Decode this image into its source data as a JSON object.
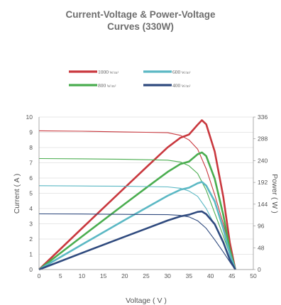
{
  "chart_data": {
    "type": "line",
    "title_line1": "Current-Voltage & Power-Voltage",
    "title_line2": "Curves (330W)",
    "xlabel": "Voltage ( V )",
    "ylabel_left": "Current ( A )",
    "ylabel_right": "Power ( W )",
    "xlim": [
      0,
      50
    ],
    "ylim_left": [
      0,
      10
    ],
    "ylim_right": [
      0,
      336
    ],
    "x_ticks": [
      "0",
      "5",
      "10",
      "15",
      "20",
      "25",
      "30",
      "35",
      "40",
      "45",
      "50"
    ],
    "y_left_ticks": [
      "0",
      "1",
      "2",
      "3",
      "4",
      "5",
      "6",
      "7",
      "8",
      "9",
      "10"
    ],
    "y_right_ticks": [
      "0",
      "48",
      "96",
      "144",
      "192",
      "240",
      "288",
      "336"
    ],
    "grid": true,
    "legend_position": "top",
    "series": [
      {
        "name": "1000",
        "unit": "W/m²",
        "color": "#c9383e",
        "iv": [
          [
            0,
            9.1
          ],
          [
            10,
            9.07
          ],
          [
            20,
            9.02
          ],
          [
            25,
            9.0
          ],
          [
            30,
            8.97
          ],
          [
            33,
            8.8
          ],
          [
            35,
            8.5
          ],
          [
            37,
            7.9
          ],
          [
            39,
            6.6
          ],
          [
            41,
            4.9
          ],
          [
            43,
            3.0
          ],
          [
            45,
            0.9
          ],
          [
            45.8,
            0
          ]
        ],
        "pv": [
          [
            0,
            0
          ],
          [
            10,
            90.7
          ],
          [
            20,
            180.4
          ],
          [
            25,
            225
          ],
          [
            30,
            269.1
          ],
          [
            33,
            290.4
          ],
          [
            35,
            297.5
          ],
          [
            37,
            319
          ],
          [
            38,
            329
          ],
          [
            39,
            320
          ],
          [
            41,
            260
          ],
          [
            43,
            160
          ],
          [
            44.5,
            60
          ],
          [
            45.8,
            0
          ]
        ]
      },
      {
        "name": "800",
        "unit": "W/m²",
        "color": "#4aad4f",
        "iv": [
          [
            0,
            7.28
          ],
          [
            10,
            7.26
          ],
          [
            20,
            7.23
          ],
          [
            25,
            7.2
          ],
          [
            30,
            7.17
          ],
          [
            33,
            7.05
          ],
          [
            35,
            6.8
          ],
          [
            37,
            6.3
          ],
          [
            39,
            5.2
          ],
          [
            41,
            3.7
          ],
          [
            43,
            2.2
          ],
          [
            45,
            0.6
          ],
          [
            45.8,
            0
          ]
        ],
        "pv": [
          [
            0,
            0
          ],
          [
            10,
            72.6
          ],
          [
            20,
            144.6
          ],
          [
            25,
            180
          ],
          [
            30,
            215.1
          ],
          [
            33,
            232.6
          ],
          [
            35,
            238
          ],
          [
            37,
            254
          ],
          [
            38,
            258
          ],
          [
            39,
            250
          ],
          [
            41,
            200
          ],
          [
            43,
            120
          ],
          [
            44.5,
            45
          ],
          [
            45.8,
            0
          ]
        ]
      },
      {
        "name": "600",
        "unit": "W/m²",
        "color": "#5bb8c4",
        "iv": [
          [
            0,
            5.5
          ],
          [
            10,
            5.48
          ],
          [
            20,
            5.46
          ],
          [
            25,
            5.44
          ],
          [
            30,
            5.42
          ],
          [
            33,
            5.33
          ],
          [
            35,
            5.15
          ],
          [
            37,
            4.8
          ],
          [
            39,
            4.0
          ],
          [
            41,
            2.9
          ],
          [
            43,
            1.7
          ],
          [
            45,
            0.5
          ],
          [
            45.8,
            0
          ]
        ],
        "pv": [
          [
            0,
            0
          ],
          [
            10,
            54.8
          ],
          [
            20,
            109.2
          ],
          [
            25,
            136
          ],
          [
            30,
            162.6
          ],
          [
            33,
            175.9
          ],
          [
            35,
            180.3
          ],
          [
            37,
            190
          ],
          [
            38,
            193
          ],
          [
            39,
            185
          ],
          [
            41,
            150
          ],
          [
            43,
            90
          ],
          [
            44.5,
            35
          ],
          [
            45.8,
            0
          ]
        ]
      },
      {
        "name": "400",
        "unit": "W/m²",
        "color": "#2f4a7e",
        "iv": [
          [
            0,
            3.65
          ],
          [
            10,
            3.64
          ],
          [
            20,
            3.62
          ],
          [
            25,
            3.61
          ],
          [
            30,
            3.6
          ],
          [
            33,
            3.55
          ],
          [
            35,
            3.45
          ],
          [
            37,
            3.2
          ],
          [
            39,
            2.7
          ],
          [
            41,
            1.95
          ],
          [
            43,
            1.15
          ],
          [
            45,
            0.3
          ],
          [
            45.8,
            0
          ]
        ],
        "pv": [
          [
            0,
            0
          ],
          [
            10,
            36.4
          ],
          [
            20,
            72.4
          ],
          [
            25,
            90.25
          ],
          [
            30,
            108
          ],
          [
            33,
            117.2
          ],
          [
            35,
            120.8
          ],
          [
            37,
            127
          ],
          [
            38,
            128
          ],
          [
            39,
            122
          ],
          [
            41,
            100
          ],
          [
            43,
            60
          ],
          [
            44.5,
            22
          ],
          [
            45.8,
            0
          ]
        ]
      }
    ]
  }
}
